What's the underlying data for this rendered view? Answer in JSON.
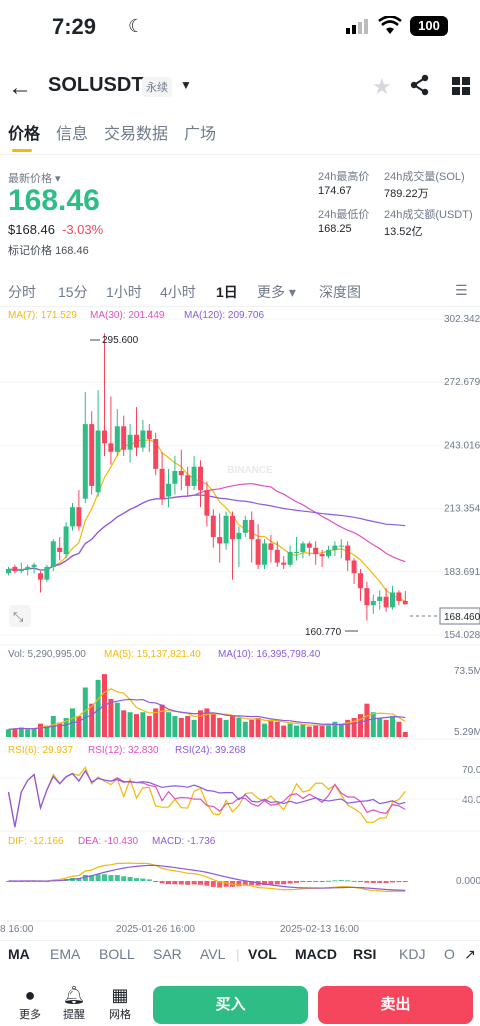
{
  "status_bar": {
    "time": "7:29",
    "battery": "100"
  },
  "header": {
    "symbol": "SOLUSDT",
    "contract_type": "永续"
  },
  "tabs": [
    "价格",
    "信息",
    "交易数据",
    "广场"
  ],
  "price": {
    "latest_label": "最新价格",
    "last": "168.46",
    "usd": "$168.46",
    "change": "-3.03%",
    "mark_label": "标记价格",
    "mark": "168.46"
  },
  "stats": {
    "high_label": "24h最高价",
    "high": "174.67",
    "low_label": "24h最低价",
    "low": "168.25",
    "vol_sol_label": "24h成交量(SOL)",
    "vol_sol": "789.22万",
    "vol_usdt_label": "24h成交额(USDT)",
    "vol_usdt": "13.52亿"
  },
  "intervals": [
    "分时",
    "15分",
    "1小时",
    "4小时",
    "1日",
    "更多",
    "深度图"
  ],
  "indicators": {
    "ma7": "MA(7): 171.529",
    "ma30": "MA(30): 201.449",
    "ma120": "MA(120): 209.706",
    "vol": "Vol: 5,290,995.00",
    "vol_ma5": "MA(5): 15,137,821.40",
    "vol_ma10": "MA(10): 16,395,798.40",
    "rsi6": "RSI(6): 29.937",
    "rsi12": "RSI(12): 32.830",
    "rsi24": "RSI(24): 39.268",
    "dif": "DIF: -12.166",
    "dea": "DEA: -10.430",
    "macd": "MACD: -1.736"
  },
  "axis": {
    "price_ticks": [
      "302.342",
      "272.679",
      "243.016",
      "213.354",
      "183.691",
      "154.028"
    ],
    "last_price_tag": "168.460",
    "high_marker": "295.600",
    "low_marker": "160.770",
    "vol_max": "73.5M",
    "vol_min": "5.29M",
    "rsi_high": "70.0",
    "rsi_low": "40.0",
    "macd_zero": "0.000",
    "dates": [
      "8 16:00",
      "2025-01-26 16:00",
      "2025-02-13 16:00"
    ],
    "watermark": "BINANCE"
  },
  "bottom_tabs": [
    "MA",
    "EMA",
    "BOLL",
    "SAR",
    "AVL",
    "VOL",
    "MACD",
    "RSI",
    "KDJ",
    "O"
  ],
  "bottom_bar": {
    "more": "更多",
    "alert": "提醒",
    "grid": "网格",
    "buy": "买入",
    "sell": "卖出"
  },
  "colors": {
    "up": "#2ebd85",
    "down": "#f6465d",
    "ma7": "#f0b90b",
    "ma30": "#e050c0",
    "ma120": "#8a5ae0",
    "accent": "#f0b90b"
  },
  "chart_data": {
    "type": "candlestick",
    "x_dates": [
      "8 16:00",
      "2025-01-26 16:00",
      "2025-02-13 16:00"
    ],
    "ylim": [
      154.028,
      302.342
    ],
    "last_price": 168.46,
    "high_marker": 295.6,
    "low_marker": 160.77,
    "candles": [
      [
        183,
        185,
        182,
        186
      ],
      [
        186,
        184,
        183,
        187
      ],
      [
        184,
        185,
        183,
        188
      ],
      [
        185,
        186,
        182,
        187
      ],
      [
        186,
        187,
        183,
        188
      ],
      [
        183,
        180,
        174,
        184
      ],
      [
        180,
        186,
        179,
        187
      ],
      [
        186,
        198,
        184,
        199
      ],
      [
        195,
        193,
        189,
        200
      ],
      [
        192,
        205,
        190,
        207
      ],
      [
        205,
        214,
        203,
        216
      ],
      [
        214,
        205,
        203,
        222
      ],
      [
        218,
        253,
        216,
        268
      ],
      [
        253,
        224,
        220,
        259
      ],
      [
        221,
        250,
        219,
        269
      ],
      [
        250,
        244,
        238,
        295.6
      ],
      [
        244,
        240,
        234,
        266
      ],
      [
        240,
        252,
        238,
        260
      ],
      [
        252,
        241,
        238,
        257
      ],
      [
        241,
        248,
        235,
        253
      ],
      [
        248,
        242,
        238,
        261
      ],
      [
        242,
        250,
        240,
        255
      ],
      [
        250,
        246,
        240,
        253
      ],
      [
        246,
        232,
        229,
        249
      ],
      [
        232,
        218,
        215,
        240
      ],
      [
        219,
        225,
        214,
        232
      ],
      [
        225,
        231,
        220,
        238
      ],
      [
        231,
        229,
        222,
        241
      ],
      [
        229,
        224,
        219,
        233
      ],
      [
        224,
        233,
        222,
        238
      ],
      [
        233,
        222,
        214,
        236
      ],
      [
        222,
        210,
        205,
        226
      ],
      [
        210,
        200,
        195,
        213
      ],
      [
        200,
        197,
        188,
        211
      ],
      [
        197,
        210,
        194,
        212
      ],
      [
        210,
        199,
        180,
        212
      ],
      [
        199,
        202,
        186,
        205
      ],
      [
        202,
        208,
        200,
        210
      ],
      [
        208,
        199,
        188,
        212
      ],
      [
        199,
        187,
        185,
        206
      ],
      [
        187,
        197,
        185,
        199
      ],
      [
        197,
        194,
        188,
        201
      ],
      [
        194,
        188,
        186,
        198
      ],
      [
        188,
        187,
        185,
        191
      ],
      [
        187,
        193,
        186,
        196
      ],
      [
        193,
        193,
        189,
        200
      ],
      [
        193,
        197,
        190,
        198
      ],
      [
        197,
        195,
        191,
        198
      ],
      [
        195,
        192,
        187,
        198
      ],
      [
        192,
        191,
        186,
        194
      ],
      [
        191,
        194,
        190,
        196
      ],
      [
        194,
        196,
        191,
        198
      ],
      [
        196,
        196,
        190,
        199
      ],
      [
        196,
        189,
        184,
        198
      ],
      [
        189,
        183,
        178,
        190
      ],
      [
        183,
        176,
        170,
        185
      ],
      [
        176,
        168,
        160.77,
        179
      ],
      [
        168,
        170,
        164,
        173
      ],
      [
        170,
        172,
        166,
        175
      ],
      [
        172,
        167,
        165,
        176
      ],
      [
        167,
        174,
        166,
        177
      ],
      [
        174,
        170,
        168,
        175
      ],
      [
        170,
        168.46,
        168.25,
        174.67
      ]
    ],
    "volume_M": [
      8,
      9,
      10,
      8,
      9,
      14,
      12,
      22,
      15,
      20,
      30,
      22,
      52,
      35,
      60,
      66,
      40,
      36,
      28,
      26,
      24,
      26,
      22,
      30,
      34,
      26,
      22,
      20,
      22,
      18,
      28,
      30,
      24,
      20,
      18,
      22,
      20,
      16,
      18,
      20,
      14,
      18,
      16,
      12,
      14,
      12,
      13,
      11,
      12,
      12,
      14,
      16,
      14,
      18,
      20,
      24,
      35,
      26,
      20,
      18,
      22,
      16,
      5.29
    ],
    "rsi": {
      "rsi6": 29.937,
      "rsi12": 32.83,
      "rsi24": 39.268
    },
    "macd": {
      "dif": -12.166,
      "dea": -10.43,
      "macd": -1.736
    }
  }
}
